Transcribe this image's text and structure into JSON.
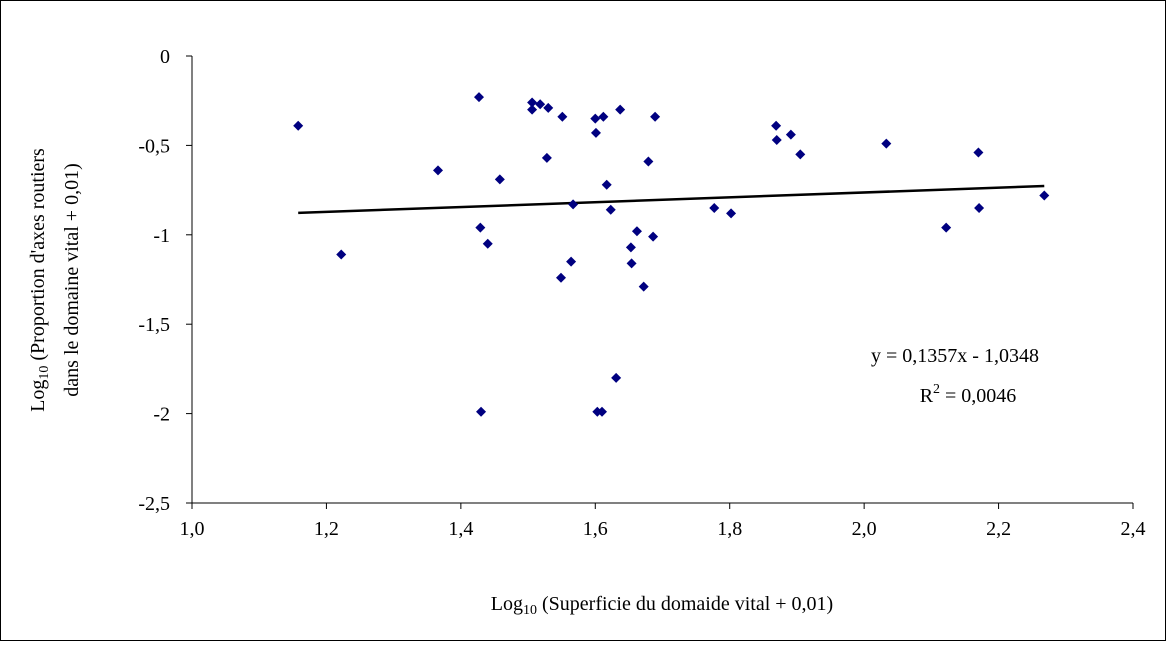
{
  "chart_data": {
    "type": "scatter",
    "x_label": {
      "prefix": "Log",
      "sub": "10",
      "suffix": " (Superficie du domaide vital + 0,01)"
    },
    "y_label": {
      "prefix": "Log",
      "sub": "10",
      "suffix": " (Proportion d'axes routiers",
      "line2": "dans le domaine vital + 0,01)"
    },
    "color": "#000080",
    "xlim": [
      1.0,
      2.4
    ],
    "ylim": [
      -2.5,
      0
    ],
    "xticks": [
      {
        "value": 1.0,
        "label": "1,0"
      },
      {
        "value": 1.2,
        "label": "1,2"
      },
      {
        "value": 1.4,
        "label": "1,4"
      },
      {
        "value": 1.6,
        "label": "1,6"
      },
      {
        "value": 1.8,
        "label": "1,8"
      },
      {
        "value": 2.0,
        "label": "2,0"
      },
      {
        "value": 2.2,
        "label": "2,2"
      },
      {
        "value": 2.4,
        "label": "2,4"
      }
    ],
    "yticks": [
      0,
      {
        "value": -0.5,
        "label": "-0,5"
      },
      -1,
      {
        "value": -1.5,
        "label": "-1,5"
      },
      -2,
      {
        "value": -2.5,
        "label": "-2,5"
      }
    ],
    "x": [
      1.158,
      1.222,
      1.366,
      1.427,
      1.429,
      1.43,
      1.44,
      1.458,
      1.506,
      1.506,
      1.518,
      1.53,
      1.528,
      1.551,
      1.549,
      1.567,
      1.564,
      1.6,
      1.601,
      1.612,
      1.603,
      1.61,
      1.617,
      1.623,
      1.637,
      1.631,
      1.689,
      1.679,
      1.662,
      1.686,
      1.653,
      1.654,
      1.672,
      1.777,
      1.802,
      1.869,
      1.87,
      1.891,
      1.905,
      2.033,
      2.122,
      2.17,
      2.171,
      2.268
    ],
    "values": [
      -0.39,
      -1.11,
      -0.64,
      -0.23,
      -0.96,
      -1.99,
      -1.05,
      -0.69,
      -0.26,
      -0.3,
      -0.27,
      -0.29,
      -0.57,
      -0.34,
      -1.24,
      -0.83,
      -1.15,
      -0.35,
      -0.43,
      -0.34,
      -1.99,
      -1.99,
      -0.72,
      -0.86,
      -0.3,
      -1.8,
      -0.34,
      -0.59,
      -0.98,
      -1.01,
      -1.07,
      -1.16,
      -1.29,
      -0.85,
      -0.88,
      -0.39,
      -0.47,
      -0.44,
      -0.55,
      -0.49,
      -0.96,
      -0.54,
      -0.85,
      -0.78
    ],
    "trendline": {
      "slope": 0.1357,
      "intercept": -1.0348,
      "color": "#000000"
    },
    "equation": "y = 0,1357x - 1,0348",
    "r2": {
      "prefix": "R",
      "sup": "2",
      "suffix": " = 0,0046"
    }
  }
}
